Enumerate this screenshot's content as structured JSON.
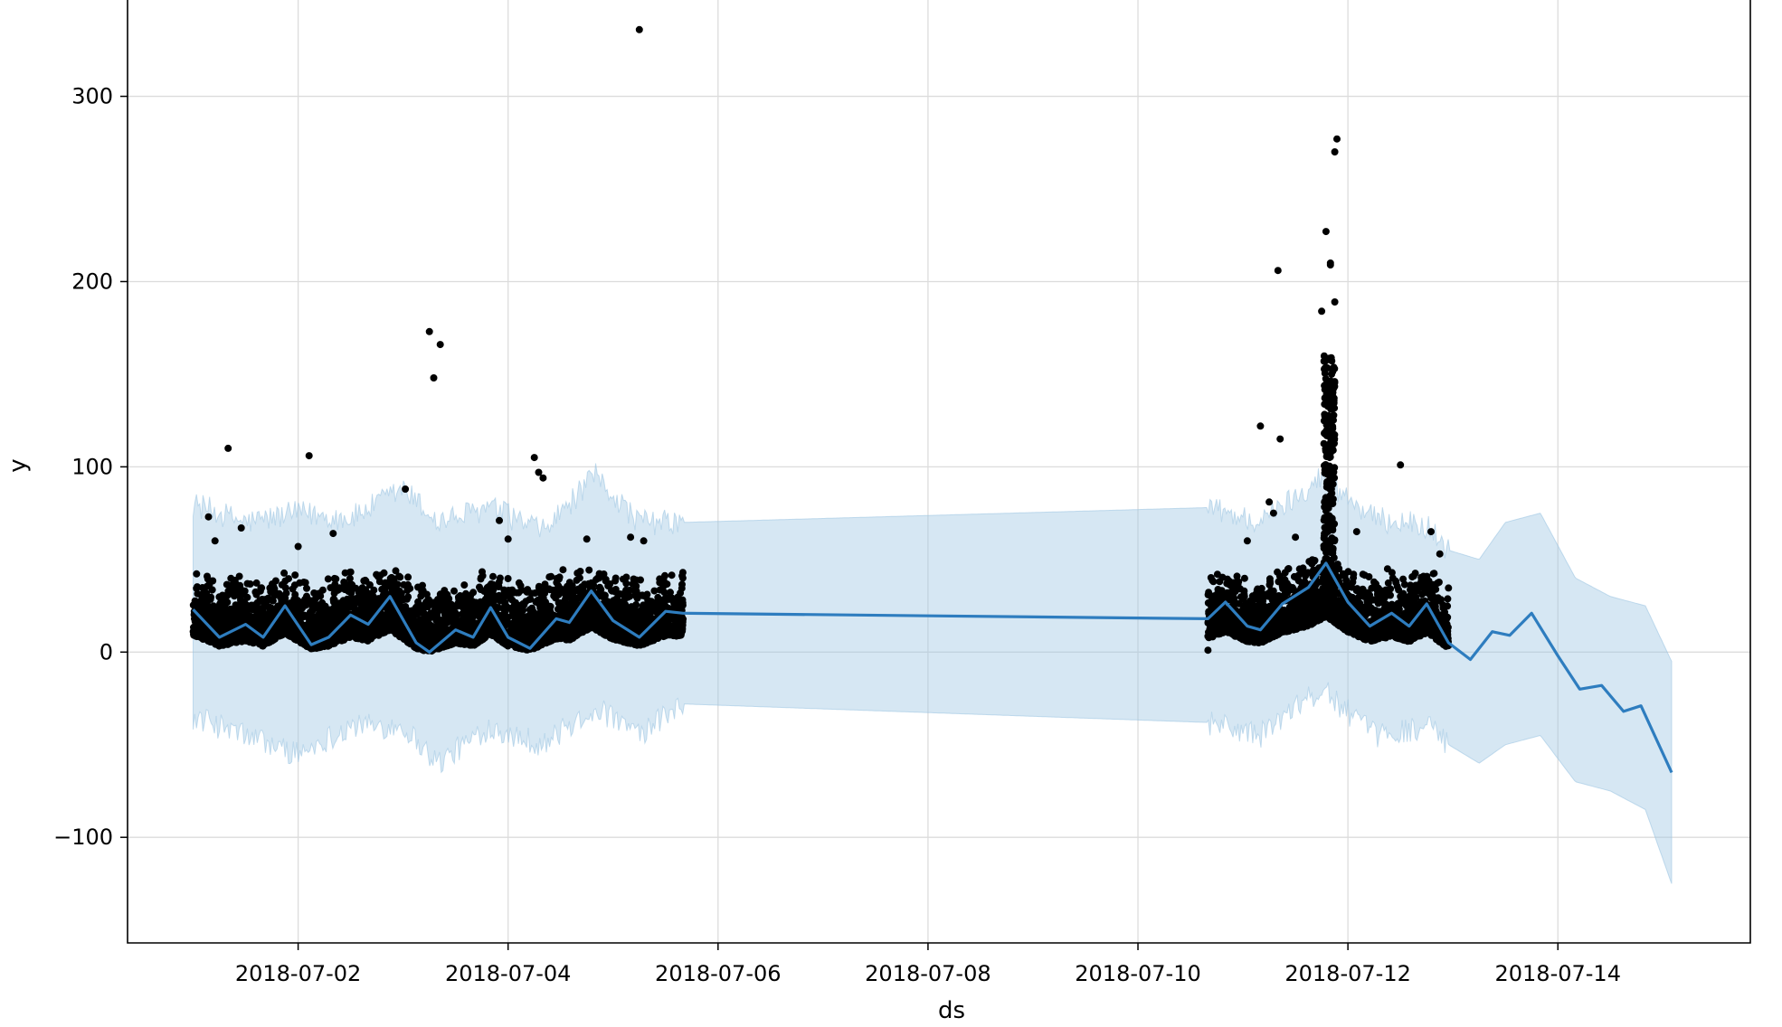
{
  "chart_data": {
    "type": "scatter",
    "title": "",
    "xlabel": "ds",
    "ylabel": "y",
    "xlim": [
      "2018-06-30T09:00",
      "2018-07-15T20:00"
    ],
    "ylim": [
      -157,
      352
    ],
    "x_ticks": [
      "2018-07-02",
      "2018-07-04",
      "2018-07-06",
      "2018-07-08",
      "2018-07-10",
      "2018-07-12",
      "2018-07-14"
    ],
    "y_ticks": [
      -100,
      0,
      100,
      200,
      300
    ],
    "y_tick_labels": [
      "−100",
      "0",
      "100",
      "200",
      "300"
    ],
    "grid": true,
    "colors": {
      "forecast": "#2e7dbf",
      "band": "#9ec6e3",
      "points": "#000000"
    },
    "observed_ranges": [
      [
        "2018-07-01T00:00",
        "2018-07-05T16:00"
      ],
      [
        "2018-07-10T16:00",
        "2018-07-12T23:00"
      ]
    ],
    "outliers": [
      {
        "x": "2018-07-05T06:00",
        "y": 336
      },
      {
        "x": "2018-07-03T06:00",
        "y": 173
      },
      {
        "x": "2018-07-03T08:30",
        "y": 166
      },
      {
        "x": "2018-07-03T07:00",
        "y": 148
      },
      {
        "x": "2018-07-03T00:30",
        "y": 88
      },
      {
        "x": "2018-07-01T08:00",
        "y": 110
      },
      {
        "x": "2018-07-02T02:30",
        "y": 106
      },
      {
        "x": "2018-07-04T06:00",
        "y": 105
      },
      {
        "x": "2018-07-04T07:00",
        "y": 97
      },
      {
        "x": "2018-07-04T08:00",
        "y": 94
      },
      {
        "x": "2018-07-03T22:00",
        "y": 71
      },
      {
        "x": "2018-07-01T03:30",
        "y": 73
      },
      {
        "x": "2018-07-01T11:00",
        "y": 67
      },
      {
        "x": "2018-07-02T08:00",
        "y": 64
      },
      {
        "x": "2018-07-04T00:00",
        "y": 61
      },
      {
        "x": "2018-07-04T18:00",
        "y": 61
      },
      {
        "x": "2018-07-05T04:00",
        "y": 62
      },
      {
        "x": "2018-07-05T07:00",
        "y": 60
      },
      {
        "x": "2018-07-01T05:00",
        "y": 60
      },
      {
        "x": "2018-07-02T00:00",
        "y": 57
      },
      {
        "x": "2018-07-11T08:00",
        "y": 206
      },
      {
        "x": "2018-07-11T04:00",
        "y": 122
      },
      {
        "x": "2018-07-11T08:30",
        "y": 115
      },
      {
        "x": "2018-07-11T06:00",
        "y": 81
      },
      {
        "x": "2018-07-11T07:00",
        "y": 75
      },
      {
        "x": "2018-07-11T12:00",
        "y": 62
      },
      {
        "x": "2018-07-11T01:00",
        "y": 60
      },
      {
        "x": "2018-07-11T18:00",
        "y": 184
      },
      {
        "x": "2018-07-11T19:00",
        "y": 227
      },
      {
        "x": "2018-07-11T20:00",
        "y": 210
      },
      {
        "x": "2018-07-11T20:00",
        "y": 209
      },
      {
        "x": "2018-07-11T21:00",
        "y": 189
      },
      {
        "x": "2018-07-11T21:30",
        "y": 277
      },
      {
        "x": "2018-07-11T21:00",
        "y": 270
      },
      {
        "x": "2018-07-12T02:00",
        "y": 65
      },
      {
        "x": "2018-07-12T12:00",
        "y": 101
      },
      {
        "x": "2018-07-12T19:00",
        "y": 65
      },
      {
        "x": "2018-07-12T21:00",
        "y": 53
      },
      {
        "x": "2018-07-10T16:00",
        "y": 1
      }
    ],
    "forecast": [
      {
        "x": "2018-07-01T00:00",
        "yhat": 23
      },
      {
        "x": "2018-07-01T06:00",
        "yhat": 8
      },
      {
        "x": "2018-07-01T12:00",
        "yhat": 15
      },
      {
        "x": "2018-07-01T16:00",
        "yhat": 8
      },
      {
        "x": "2018-07-01T21:00",
        "yhat": 25
      },
      {
        "x": "2018-07-02T03:00",
        "yhat": 4
      },
      {
        "x": "2018-07-02T07:00",
        "yhat": 8
      },
      {
        "x": "2018-07-02T12:00",
        "yhat": 20
      },
      {
        "x": "2018-07-02T16:00",
        "yhat": 15
      },
      {
        "x": "2018-07-02T21:00",
        "yhat": 30
      },
      {
        "x": "2018-07-03T03:00",
        "yhat": 5
      },
      {
        "x": "2018-07-03T06:00",
        "yhat": 0
      },
      {
        "x": "2018-07-03T12:00",
        "yhat": 12
      },
      {
        "x": "2018-07-03T16:00",
        "yhat": 8
      },
      {
        "x": "2018-07-03T20:00",
        "yhat": 24
      },
      {
        "x": "2018-07-04T00:00",
        "yhat": 8
      },
      {
        "x": "2018-07-04T05:00",
        "yhat": 2
      },
      {
        "x": "2018-07-04T11:00",
        "yhat": 18
      },
      {
        "x": "2018-07-04T14:00",
        "yhat": 16
      },
      {
        "x": "2018-07-04T19:00",
        "yhat": 33
      },
      {
        "x": "2018-07-05T00:00",
        "yhat": 17
      },
      {
        "x": "2018-07-05T06:00",
        "yhat": 8
      },
      {
        "x": "2018-07-05T12:00",
        "yhat": 22
      },
      {
        "x": "2018-07-05T16:00",
        "yhat": 21
      },
      {
        "x": "2018-07-10T16:00",
        "yhat": 18
      },
      {
        "x": "2018-07-10T20:00",
        "yhat": 27
      },
      {
        "x": "2018-07-11T01:00",
        "yhat": 14
      },
      {
        "x": "2018-07-11T04:00",
        "yhat": 12
      },
      {
        "x": "2018-07-11T09:00",
        "yhat": 26
      },
      {
        "x": "2018-07-11T15:00",
        "yhat": 35
      },
      {
        "x": "2018-07-11T19:00",
        "yhat": 48
      },
      {
        "x": "2018-07-12T00:00",
        "yhat": 27
      },
      {
        "x": "2018-07-12T05:00",
        "yhat": 14
      },
      {
        "x": "2018-07-12T10:00",
        "yhat": 21
      },
      {
        "x": "2018-07-12T14:00",
        "yhat": 14
      },
      {
        "x": "2018-07-12T18:00",
        "yhat": 26
      },
      {
        "x": "2018-07-12T23:00",
        "yhat": 5
      },
      {
        "x": "2018-07-13T04:00",
        "yhat": -4
      },
      {
        "x": "2018-07-13T09:00",
        "yhat": 11
      },
      {
        "x": "2018-07-13T13:00",
        "yhat": 9
      },
      {
        "x": "2018-07-13T18:00",
        "yhat": 21
      },
      {
        "x": "2018-07-14T00:00",
        "yhat": -2
      },
      {
        "x": "2018-07-14T05:00",
        "yhat": -20
      },
      {
        "x": "2018-07-14T10:00",
        "yhat": -18
      },
      {
        "x": "2018-07-14T15:00",
        "yhat": -32
      },
      {
        "x": "2018-07-14T19:00",
        "yhat": -29
      },
      {
        "x": "2018-07-15T02:00",
        "yhat": -65
      }
    ],
    "uncertainty": [
      {
        "x": "2018-07-01T00:00",
        "lower": -35,
        "upper": 80
      },
      {
        "x": "2018-07-01T12:00",
        "lower": -45,
        "upper": 70
      },
      {
        "x": "2018-07-02T00:00",
        "lower": -55,
        "upper": 75
      },
      {
        "x": "2018-07-02T12:00",
        "lower": -40,
        "upper": 72
      },
      {
        "x": "2018-07-03T00:00",
        "lower": -40,
        "upper": 88
      },
      {
        "x": "2018-07-03T08:00",
        "lower": -60,
        "upper": 70
      },
      {
        "x": "2018-07-03T20:00",
        "lower": -40,
        "upper": 78
      },
      {
        "x": "2018-07-04T08:00",
        "lower": -50,
        "upper": 65
      },
      {
        "x": "2018-07-04T20:00",
        "lower": -30,
        "upper": 95
      },
      {
        "x": "2018-07-05T06:00",
        "lower": -45,
        "upper": 70
      },
      {
        "x": "2018-07-05T16:00",
        "lower": -28,
        "upper": 70
      },
      {
        "x": "2018-07-10T16:00",
        "lower": -38,
        "upper": 78
      },
      {
        "x": "2018-07-11T04:00",
        "lower": -45,
        "upper": 70
      },
      {
        "x": "2018-07-11T18:00",
        "lower": -20,
        "upper": 95
      },
      {
        "x": "2018-07-12T06:00",
        "lower": -45,
        "upper": 72
      },
      {
        "x": "2018-07-12T18:00",
        "lower": -40,
        "upper": 68
      },
      {
        "x": "2018-07-12T23:00",
        "lower": -50,
        "upper": 55
      },
      {
        "x": "2018-07-13T06:00",
        "lower": -60,
        "upper": 50
      },
      {
        "x": "2018-07-13T12:00",
        "lower": -50,
        "upper": 70
      },
      {
        "x": "2018-07-13T20:00",
        "lower": -45,
        "upper": 75
      },
      {
        "x": "2018-07-14T04:00",
        "lower": -70,
        "upper": 40
      },
      {
        "x": "2018-07-14T12:00",
        "lower": -75,
        "upper": 30
      },
      {
        "x": "2018-07-14T20:00",
        "lower": -85,
        "upper": 25
      },
      {
        "x": "2018-07-15T02:00",
        "lower": -125,
        "upper": -5
      }
    ]
  }
}
